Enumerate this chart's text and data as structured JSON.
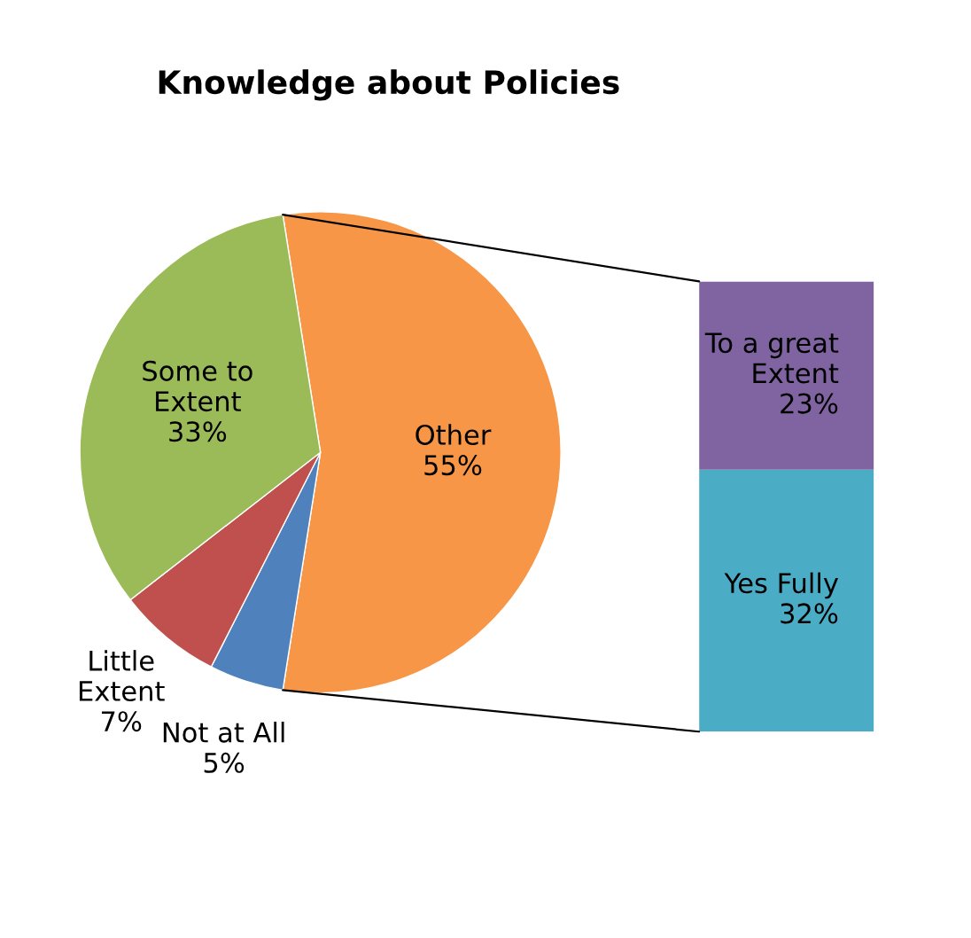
{
  "chart_data": [
    {
      "type": "pie",
      "title": "Knowledge about Policies",
      "categories": [
        "Other",
        "Not at All",
        "Little\nExtent",
        "Some to\nExtent"
      ],
      "values": [
        55,
        5,
        7,
        33
      ],
      "value_labels": [
        "55%",
        "5%",
        "7%",
        "33%"
      ],
      "colors": [
        "#f79646",
        "#4f81bd",
        "#c0504d",
        "#9bbb59"
      ]
    },
    {
      "type": "bar",
      "stacked": true,
      "categories": [
        null
      ],
      "tick_labels": false,
      "series": [
        {
          "name": "Yes Fully",
          "color": "#4bacc6",
          "values": [
            32
          ],
          "value_labels": [
            "32%"
          ]
        },
        {
          "name": "To a great\nExtent",
          "color": "#8064a2",
          "values": [
            23
          ],
          "value_labels": [
            "23%"
          ]
        }
      ]
    }
  ]
}
